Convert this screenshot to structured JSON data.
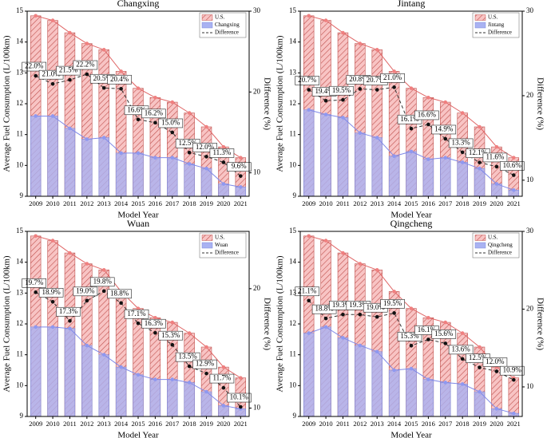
{
  "chart_data": [
    {
      "type": "bar",
      "title": "Changxing",
      "xlabel": "Model Year",
      "ylabel": "Average Fuel Consumption (L/100km)",
      "y2label": "Difference (%)",
      "categories": [
        "2009",
        "2010",
        "2011",
        "2012",
        "2013",
        "2014",
        "2015",
        "2016",
        "2017",
        "2018",
        "2019",
        "2020",
        "2021"
      ],
      "ylim": [
        9,
        15
      ],
      "yticks": [
        9,
        10,
        11,
        12,
        13,
        14,
        15
      ],
      "y2lim": [
        7.1,
        30
      ],
      "y2ticks": [
        10,
        20,
        30
      ],
      "legend": "upper right",
      "series": [
        {
          "name": "U.S.",
          "color": "#f4a6a6",
          "values": [
            14.85,
            14.7,
            14.3,
            13.95,
            13.75,
            13.05,
            12.5,
            12.2,
            12.05,
            11.7,
            11.25,
            10.6,
            10.25
          ]
        },
        {
          "name": "Changxing",
          "color": "#a9b2f2",
          "values": [
            11.6,
            11.6,
            11.2,
            10.85,
            10.9,
            10.4,
            10.4,
            10.25,
            10.25,
            10.05,
            9.9,
            9.4,
            9.3
          ]
        },
        {
          "name": "Difference",
          "color": "#333333",
          "axis": "y2",
          "values": [
            22.0,
            21.0,
            21.5,
            22.2,
            20.5,
            20.4,
            16.6,
            16.2,
            15.0,
            12.5,
            12.0,
            11.3,
            9.6
          ],
          "value_labels": [
            "22.0%",
            "21.0%",
            "21.5%",
            "22.2%",
            "20.5%",
            "20.4%",
            "16.6%",
            "16.2%",
            "15.0%",
            "12.5%",
            "12.0%",
            "11.3%",
            "9.6%"
          ]
        }
      ]
    },
    {
      "type": "bar",
      "title": "Jintang",
      "xlabel": "Model Year",
      "ylabel": "Average Fuel Consumption (L/100km)",
      "y2label": "Difference (%)",
      "categories": [
        "2009",
        "2010",
        "2011",
        "2012",
        "2013",
        "2014",
        "2015",
        "2016",
        "2017",
        "2018",
        "2019",
        "2020",
        "2021"
      ],
      "ylim": [
        9,
        15
      ],
      "yticks": [
        9,
        10,
        11,
        12,
        13,
        14,
        15
      ],
      "y2lim": [
        8.1,
        30
      ],
      "y2ticks": [
        10,
        20,
        30
      ],
      "legend": "upper right",
      "series": [
        {
          "name": "U.S.",
          "color": "#f4a6a6",
          "values": [
            14.85,
            14.7,
            14.3,
            13.95,
            13.75,
            13.05,
            12.5,
            12.2,
            12.05,
            11.7,
            11.25,
            10.6,
            10.25
          ]
        },
        {
          "name": "Jintang",
          "color": "#a9b2f2",
          "values": [
            11.8,
            11.65,
            11.55,
            11.05,
            10.9,
            10.3,
            10.45,
            10.2,
            10.25,
            10.1,
            9.9,
            9.4,
            9.2
          ]
        },
        {
          "name": "Difference",
          "color": "#333333",
          "axis": "y2",
          "values": [
            20.7,
            19.4,
            19.5,
            20.8,
            20.7,
            21.0,
            16.1,
            16.6,
            14.9,
            13.3,
            12.1,
            11.6,
            10.6
          ],
          "value_labels": [
            "20.7%",
            "19.4%",
            "19.5%",
            "20.8%",
            "20.7%",
            "21.0%",
            "16.1%",
            "16.6%",
            "14.9%",
            "13.3%",
            "12.1%",
            "11.6%",
            "10.6%"
          ]
        }
      ]
    },
    {
      "type": "bar",
      "title": "Wuan",
      "xlabel": "Model Year",
      "ylabel": "Average Fuel Consumption (L/100km)",
      "y2label": "Difference (%)",
      "categories": [
        "2009",
        "2010",
        "2011",
        "2012",
        "2013",
        "2014",
        "2015",
        "2016",
        "2017",
        "2018",
        "2019",
        "2020",
        "2021"
      ],
      "ylim": [
        9,
        15
      ],
      "yticks": [
        9,
        10,
        11,
        12,
        13,
        14,
        15
      ],
      "y2lim": [
        9.3,
        24.8
      ],
      "y2ticks": [
        10,
        20
      ],
      "legend": "upper right",
      "series": [
        {
          "name": "U.S.",
          "color": "#f4a6a6",
          "values": [
            14.85,
            14.7,
            14.3,
            13.95,
            13.75,
            13.05,
            12.5,
            12.2,
            12.05,
            11.7,
            11.25,
            10.6,
            10.25
          ]
        },
        {
          "name": "Wuan",
          "color": "#a9b2f2",
          "values": [
            11.9,
            11.9,
            11.85,
            11.3,
            11.0,
            10.6,
            10.35,
            10.2,
            10.2,
            10.1,
            9.8,
            9.35,
            9.25
          ]
        },
        {
          "name": "Difference",
          "color": "#333333",
          "axis": "y2",
          "values": [
            19.7,
            18.9,
            17.3,
            19.0,
            19.8,
            18.8,
            17.1,
            16.3,
            15.3,
            13.5,
            12.9,
            11.7,
            10.1
          ],
          "value_labels": [
            "19.7%",
            "18.9%",
            "17.3%",
            "19.0%",
            "19.8%",
            "18.8%",
            "17.1%",
            "16.3%",
            "15.3%",
            "13.5%",
            "12.9%",
            "11.7%",
            "10.1%"
          ]
        }
      ]
    },
    {
      "type": "bar",
      "title": "Qingcheng",
      "xlabel": "Model Year",
      "ylabel": "Average Fuel Consumption (L/100km)",
      "y2label": "Difference (%)",
      "categories": [
        "2009",
        "2010",
        "2011",
        "2012",
        "2013",
        "2014",
        "2015",
        "2016",
        "2017",
        "2018",
        "2019",
        "2020",
        "2021"
      ],
      "ylim": [
        9,
        15
      ],
      "yticks": [
        9,
        10,
        11,
        12,
        13,
        14,
        15
      ],
      "y2lim": [
        6.2,
        30
      ],
      "y2ticks": [
        10,
        20,
        30
      ],
      "legend": "upper right",
      "series": [
        {
          "name": "U.S.",
          "color": "#f4a6a6",
          "values": [
            14.85,
            14.7,
            14.3,
            13.95,
            13.75,
            13.05,
            12.5,
            12.2,
            12.05,
            11.7,
            11.25,
            10.6,
            10.25
          ]
        },
        {
          "name": "Qingcheng",
          "color": "#a9b2f2",
          "values": [
            11.7,
            11.9,
            11.55,
            11.3,
            11.1,
            10.5,
            10.55,
            10.2,
            10.1,
            10.05,
            9.8,
            9.25,
            9.1
          ]
        },
        {
          "name": "Difference",
          "color": "#333333",
          "axis": "y2",
          "values": [
            21.1,
            18.8,
            19.3,
            19.3,
            19.0,
            19.5,
            15.3,
            16.1,
            15.6,
            13.6,
            12.5,
            12.0,
            10.9
          ],
          "value_labels": [
            "21.1%",
            "18.8%",
            "19.3%",
            "19.3%",
            "19.0%",
            "19.5%",
            "15.3%",
            "16.1%",
            "15.6%",
            "13.6%",
            "12.5%",
            "12.0%",
            "10.9%"
          ]
        }
      ]
    }
  ]
}
